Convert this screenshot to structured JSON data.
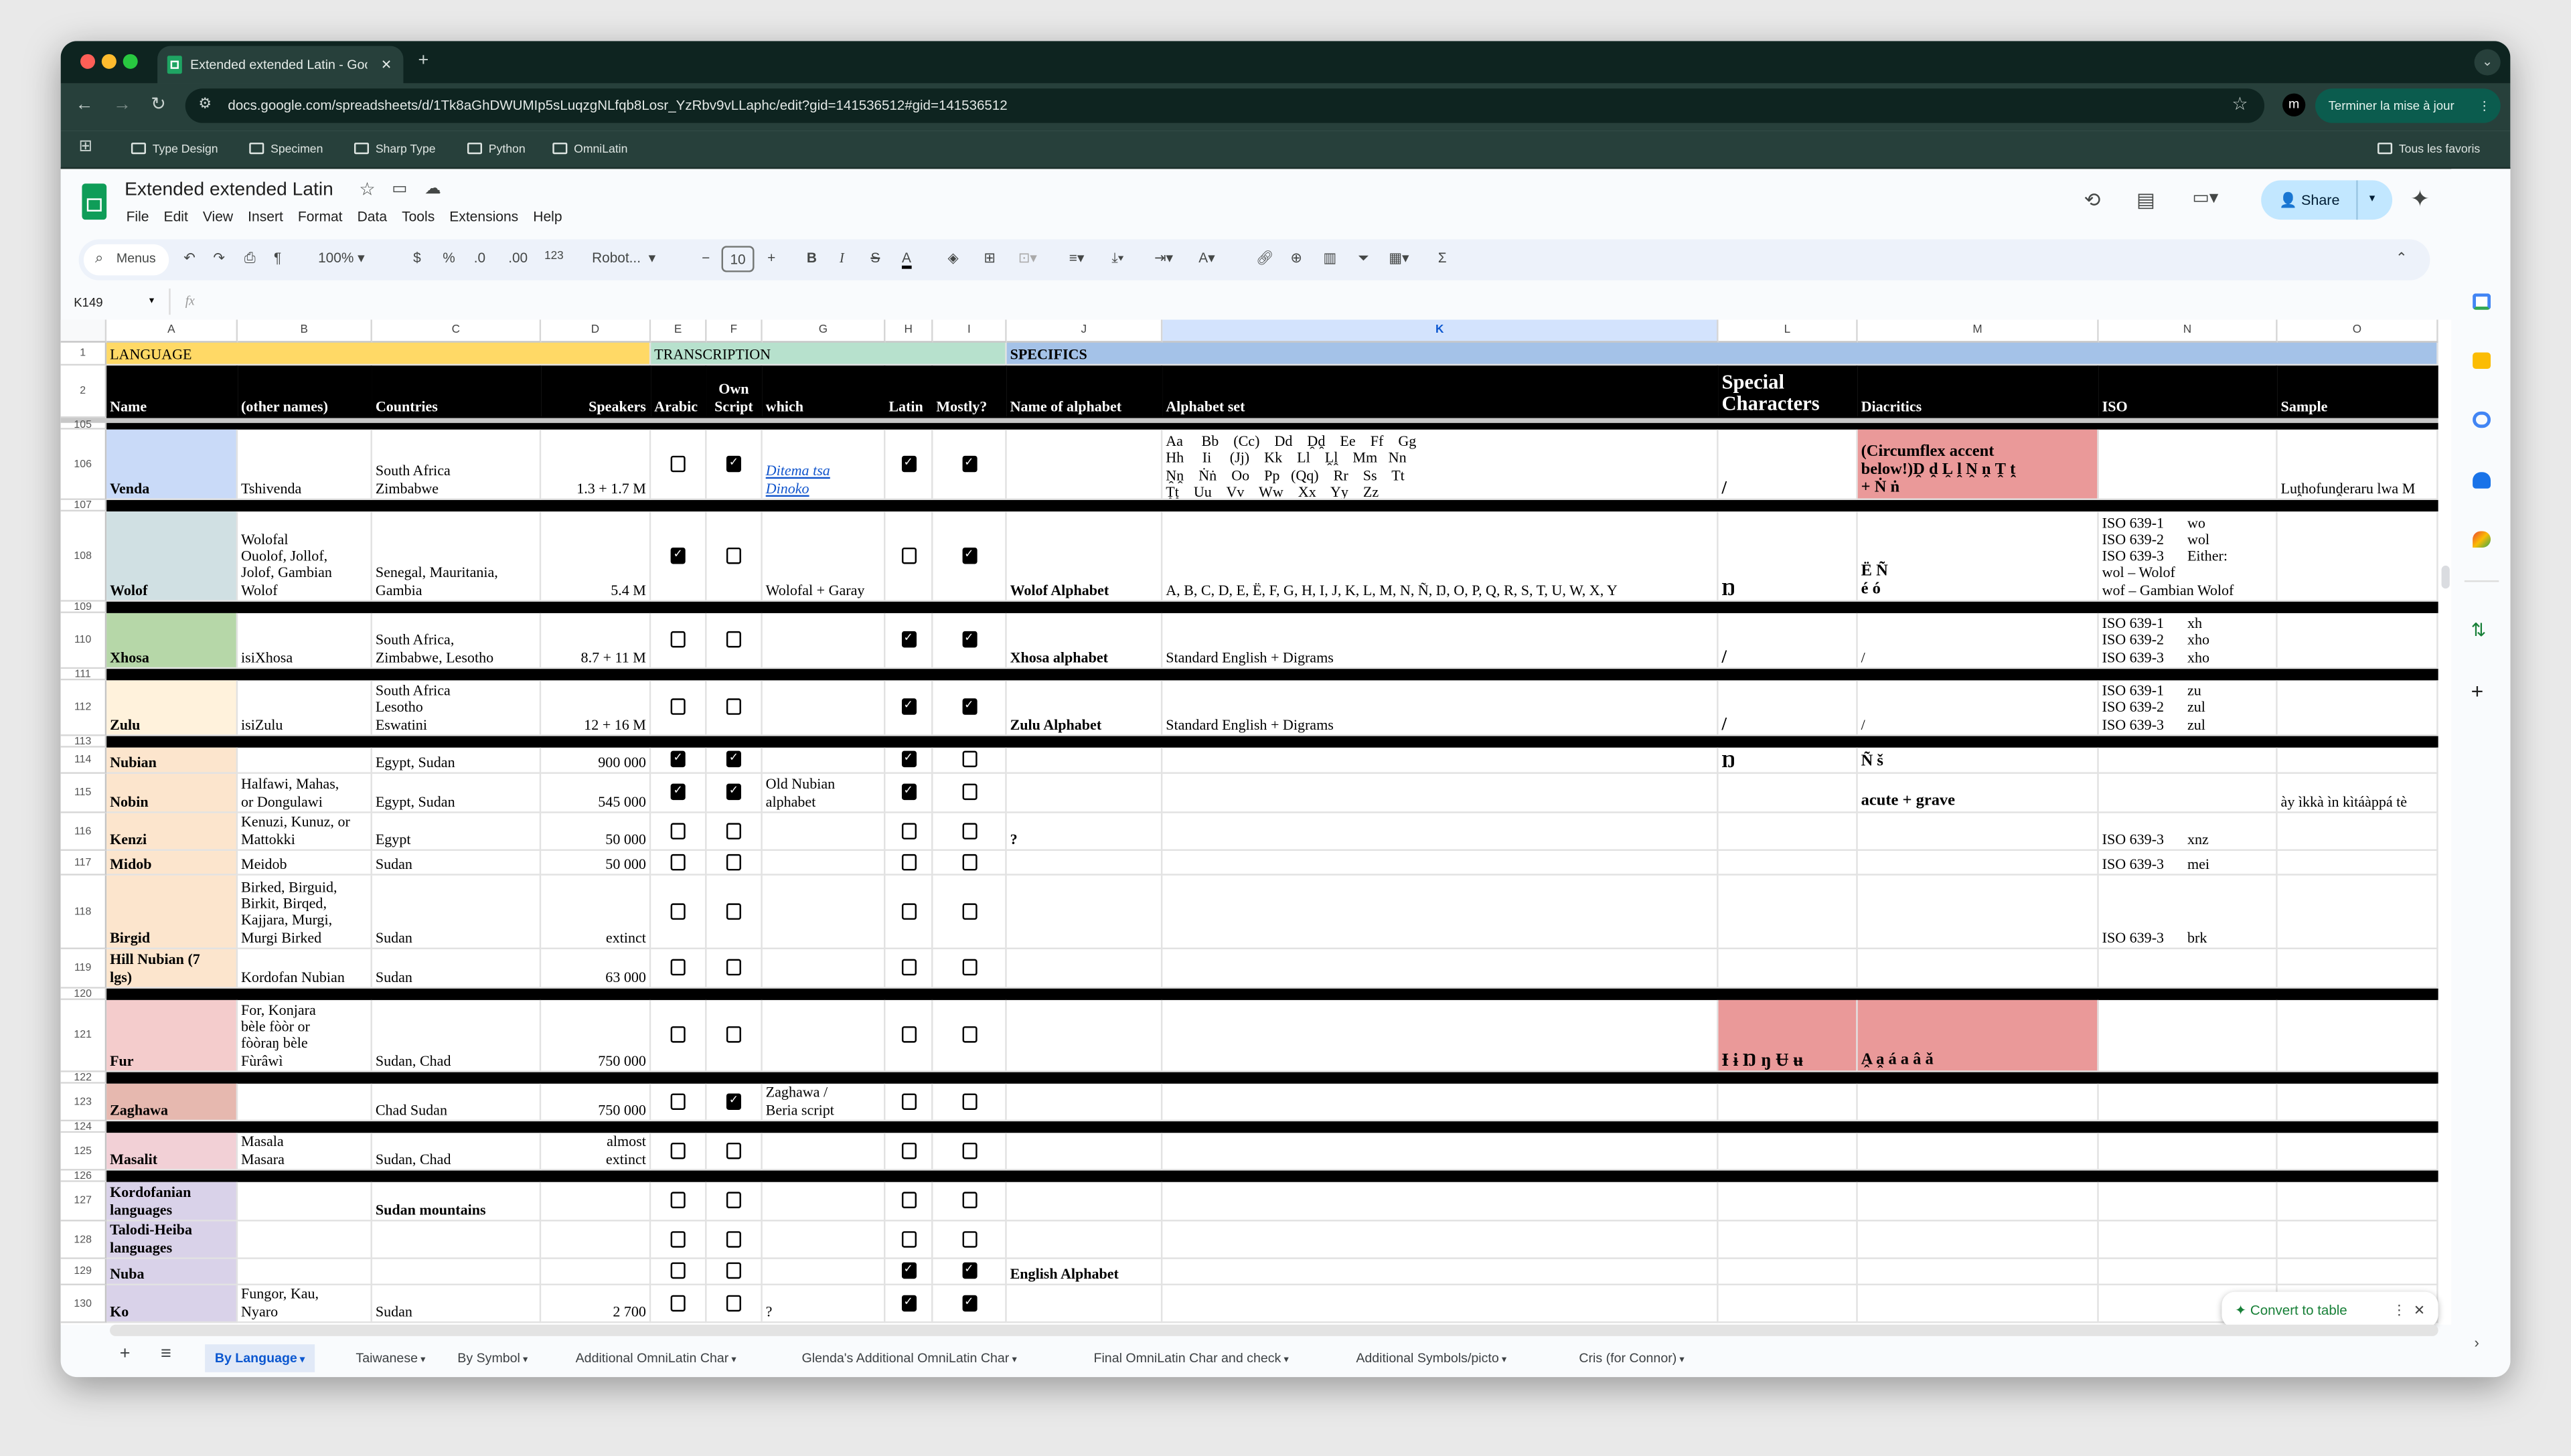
{
  "browser": {
    "tab_title": "Extended extended Latin - Google Sheets",
    "url": "docs.google.com/spreadsheets/d/1Tk8aGhDWUMIp5sLuqzgNLfqb8Losr_YzRbv9vLLaphc/edit?gid=141536512#gid=141536512",
    "update_button": "Terminer la mise à jour",
    "profile_initial": "m",
    "bookmarks": [
      "Type Design",
      "Specimen",
      "Sharp Type",
      "Python",
      "OmniLatin"
    ],
    "all_bookmarks": "Tous les favoris"
  },
  "app": {
    "doc_title": "Extended extended Latin",
    "menus": [
      "File",
      "Edit",
      "View",
      "Insert",
      "Format",
      "Data",
      "Tools",
      "Extensions",
      "Help"
    ],
    "share_label": "Share",
    "brand_color": "#0f9d58",
    "avatar_initial": "m"
  },
  "toolbar": {
    "search_label": "Menus",
    "zoom": "100%",
    "currency": "$",
    "percent": "%",
    "dec_decrease": ".0",
    "dec_increase": ".00",
    "number_format": "123",
    "font": "Robot...",
    "font_size": "10",
    "bold": "B",
    "italic": "I",
    "strike": "S",
    "text_color": "A",
    "sum": "Σ"
  },
  "formula_bar": {
    "cell_ref": "K149",
    "fx": "fx",
    "value": ""
  },
  "grid": {
    "columns": [
      "A",
      "B",
      "C",
      "D",
      "E",
      "F",
      "G",
      "H",
      "I",
      "J",
      "K",
      "L",
      "M",
      "N",
      "O"
    ],
    "selected_column": "K",
    "row1": {
      "num": "1",
      "language": "LANGUAGE",
      "transcription": "TRANSCRIPTION",
      "specifics": "SPECIFICS"
    },
    "row2": {
      "num": "2",
      "name": "Name",
      "other": "(other names)",
      "countries": "Countries",
      "speakers": "Speakers",
      "arabic": "Arabic",
      "own_script": "Own\nScript",
      "which": "which",
      "latin": "Latin",
      "mostly": "Mostly?",
      "alphabet_name": "Name of alphabet",
      "alphabet_set": "Alphabet set",
      "special": "Special\nCharacters",
      "diacritics": "Diacritics",
      "iso": "ISO",
      "sample": "Sample"
    },
    "rows": [
      {
        "num": "105",
        "sep": true
      },
      {
        "num": "106",
        "a": "Venda",
        "a_bg": "#c9daf8",
        "b": "Tshivenda",
        "c": "South Africa\nZimbabwe",
        "d": "1.3 + 1.7 M",
        "checks": [
          false,
          true,
          true,
          true
        ],
        "g": "Ditema tsa\nDinoko",
        "g_link": true,
        "k": "Aa     Bb    (Cc)    Dd    Ḓḓ    Ee    Ff    Gg\nHh     Ii     (Jj)    Kk    Ll    Ḽḽ    Mm   Nn\nṊṋ    Ṅṅ    Oo    Pp   (Qq)    Rr    Ss    Tt\nṰṱ    Uu    Vv    Ww    Xx    Yy    Zz",
        "k_top": true,
        "l": "/",
        "m": "(Circumflex accent\nbelow!)Ḓ ḓ Ḽ ḽ Ṋ ṋ Ṱ ṱ\n+ Ṅ ṅ",
        "m_bg": "#ea9999",
        "m_bold": true,
        "o": "Luṱhofunḓeraru lwa M"
      },
      {
        "num": "107",
        "sep": true
      },
      {
        "num": "108",
        "a": "Wolof",
        "a_bg": "#d0e0e3",
        "b": "Wolofal\nOuolof, Jollof,\nJolof, Gambian\nWolof",
        "c": "Senegal, Mauritania,\nGambia",
        "d": "5.4 M",
        "checks": [
          true,
          false,
          false,
          true
        ],
        "g": "Wolofal + Garay",
        "j": "Wolof Alphabet",
        "k": "A, B, C, D, E, Ë, F, G, H, I, J, K, L, M, N, Ñ, Ŋ, O, P, Q, R, S, T, U, W, X, Y",
        "l": "Ŋ",
        "m": "Ë Ñ\né ó",
        "m_bold": true,
        "iso": [
          [
            "ISO 639-1",
            "wo"
          ],
          [
            "ISO 639-2",
            "wol"
          ],
          [
            "ISO 639-3",
            "Either:"
          ],
          [
            "wol – Wolof",
            ""
          ],
          [
            "wof – Gambian Wolof",
            ""
          ]
        ]
      },
      {
        "num": "109",
        "sep": true
      },
      {
        "num": "110",
        "a": "Xhosa",
        "a_bg": "#b6d7a8",
        "b": "isiXhosa",
        "c": "South Africa,\nZimbabwe, Lesotho",
        "d": "8.7 + 11 M",
        "checks": [
          false,
          false,
          true,
          true
        ],
        "j": "Xhosa alphabet",
        "k": "Standard English + Digrams",
        "l": "/",
        "m": "/",
        "iso": [
          [
            "ISO 639-1",
            "xh"
          ],
          [
            "ISO 639-2",
            "xho"
          ],
          [
            "ISO 639-3",
            "xho"
          ]
        ]
      },
      {
        "num": "111",
        "sep": true
      },
      {
        "num": "112",
        "a": "Zulu",
        "a_bg": "#fff2dc",
        "b": "isiZulu",
        "c": "South Africa\nLesotho\nEswatini",
        "d": "12 + 16 M",
        "checks": [
          false,
          false,
          true,
          true
        ],
        "j": "Zulu Alphabet",
        "k": "Standard English + Digrams",
        "l": "/",
        "m": "/",
        "iso": [
          [
            "ISO 639-1",
            "zu"
          ],
          [
            "ISO 639-2",
            "zul"
          ],
          [
            "ISO 639-3",
            "zul"
          ]
        ]
      },
      {
        "num": "113",
        "sep": true
      },
      {
        "num": "114",
        "a": "Nubian",
        "a_bg": "#fce5cd",
        "c": "Egypt, Sudan",
        "d": "900 000",
        "checks": [
          true,
          true,
          true,
          false
        ],
        "l": "Ŋ",
        "m": "Ñ š",
        "m_bold": true
      },
      {
        "num": "115",
        "a": "Nobin",
        "a_bg": "#fce5cd",
        "b": "Halfawi, Mahas,\nor Dongulawi",
        "c": "Egypt, Sudan",
        "d": "545 000",
        "checks": [
          true,
          true,
          true,
          false
        ],
        "g": "Old Nubian\nalphabet",
        "m": "acute + grave",
        "m_bold": true,
        "o": "ày ìkkà ìn kìtáàppá tè"
      },
      {
        "num": "116",
        "a": "Kenzi",
        "a_bg": "#fce5cd",
        "b": "Kenuzi, Kunuz, or\nMattokki",
        "c": "Egypt",
        "d": "50 000",
        "checks": [
          false,
          false,
          false,
          false
        ],
        "j": "?",
        "iso": [
          [
            "ISO 639-3",
            "xnz"
          ]
        ]
      },
      {
        "num": "117",
        "a": "Midob",
        "a_bg": "#fce5cd",
        "b": "Meidob",
        "c": "Sudan",
        "d": "50 000",
        "checks": [
          false,
          false,
          false,
          false
        ],
        "iso": [
          [
            "ISO 639-3",
            "mei"
          ]
        ]
      },
      {
        "num": "118",
        "a": "Birgid",
        "a_bg": "#fce5cd",
        "b": "Birked, Birguid,\nBirkit, Birqed,\nKajjara, Murgi,\nMurgi Birked",
        "c": "Sudan",
        "d": "extinct",
        "checks": [
          false,
          false,
          false,
          false
        ],
        "iso": [
          [
            "ISO 639-3",
            "brk"
          ]
        ]
      },
      {
        "num": "119",
        "a": "Hill Nubian (7\nlgs)",
        "a_bg": "#fce5cd",
        "b": "Kordofan Nubian",
        "c": "Sudan",
        "d": "63 000",
        "checks": [
          false,
          false,
          false,
          false
        ]
      },
      {
        "num": "120",
        "sep": true
      },
      {
        "num": "121",
        "a": "Fur",
        "a_bg": "#f4cccc",
        "b": "For, Konjara\nbèle fòòr or\nfòòraŋ bèle\nFùrâwì",
        "c": "Sudan, Chad",
        "d": "750 000",
        "checks": [
          false,
          false,
          false,
          false
        ],
        "l": "Ɨ ɨ Ŋ ŋ Ʉ ʉ",
        "l_bg": "#ea9999",
        "m": "A̭ a̭ á     a     â     ǎ",
        "m_bg": "#ea9999",
        "m_bold": true
      },
      {
        "num": "122",
        "sep": true
      },
      {
        "num": "123",
        "a": "Zaghawa",
        "a_bg": "#e6b8af",
        "c": "Chad Sudan",
        "d": "750 000",
        "checks": [
          false,
          true,
          false,
          false
        ],
        "g": "Zaghawa /\nBeria script"
      },
      {
        "num": "124",
        "sep": true
      },
      {
        "num": "125",
        "a": "Masalit",
        "a_bg": "#f2d0d6",
        "b": "Masala\nMasara",
        "c": "Sudan, Chad",
        "d": "almost\nextinct",
        "checks": [
          false,
          false,
          false,
          false
        ]
      },
      {
        "num": "126",
        "sep": true
      },
      {
        "num": "127",
        "a": "Kordofanian\nlanguages",
        "a_bg": "#d9d2e9",
        "c": "Sudan mountains",
        "c_bold": true,
        "checks": [
          false,
          false,
          false,
          false
        ]
      },
      {
        "num": "128",
        "a": "Talodi-Heiba\nlanguages",
        "a_bg": "#d9d2e9",
        "checks": [
          false,
          false,
          false,
          false
        ]
      },
      {
        "num": "129",
        "a": "Nuba",
        "a_bg": "#d9d2e9",
        "checks": [
          false,
          false,
          true,
          true
        ],
        "j": "English Alphabet"
      },
      {
        "num": "130",
        "a": "Ko",
        "a_bg": "#d9d2e9",
        "b": "Fungor, Kau,\nNyaro",
        "c": "Sudan",
        "d": "2 700",
        "checks": [
          false,
          false,
          true,
          true
        ],
        "g": "?"
      }
    ]
  },
  "convert_chip": {
    "label": "Convert to table"
  },
  "sheet_tabs": {
    "active": "By Language",
    "tabs": [
      "By Language",
      "Taiwanese",
      "By Symbol",
      "Additional OmniLatin Char",
      "Glenda's Additional OmniLatin Char",
      "Final OmniLatin Char and check",
      "Additional Symbols/picto",
      "Cris (for Connor)"
    ]
  },
  "side_panel": {
    "apps": [
      "calendar-icon",
      "keep-icon",
      "tasks-icon",
      "contacts-icon",
      "maps-icon"
    ]
  }
}
